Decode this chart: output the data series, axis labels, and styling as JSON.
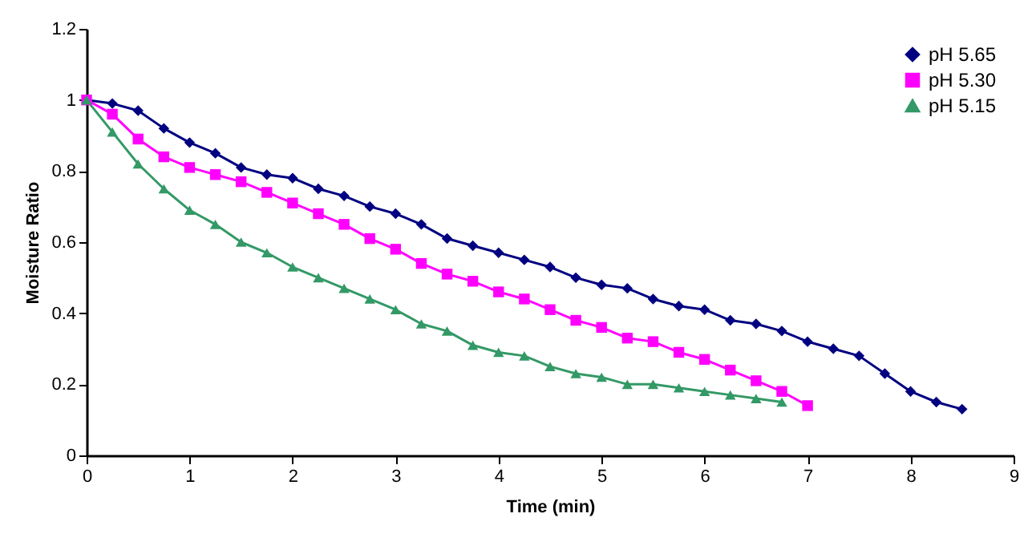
{
  "chart_data": {
    "type": "line",
    "xlabel": "Time (min)",
    "ylabel": "Moisture Ratio",
    "xlim": [
      0,
      9
    ],
    "xticks": [
      0,
      1,
      2,
      3,
      4,
      5,
      6,
      7,
      8,
      9
    ],
    "ylim": [
      0,
      1.2
    ],
    "yticks": [
      0,
      0.2,
      0.4,
      0.6,
      0.8,
      1,
      1.2
    ],
    "grid": false,
    "legend": "top right",
    "line_style": "solid",
    "series": [
      {
        "name": "pH 5.65",
        "color": "#000080",
        "marker": "diamond",
        "x": [
          0,
          0.25,
          0.5,
          0.75,
          1,
          1.25,
          1.5,
          1.75,
          2,
          2.25,
          2.5,
          2.75,
          3,
          3.25,
          3.5,
          3.75,
          4,
          4.25,
          4.5,
          4.75,
          5,
          5.25,
          5.5,
          5.75,
          6,
          6.25,
          6.5,
          6.75,
          7,
          7.25,
          7.5,
          7.75,
          8,
          8.25,
          8.5
        ],
        "values": [
          1,
          0.99,
          0.97,
          0.92,
          0.88,
          0.85,
          0.81,
          0.79,
          0.78,
          0.75,
          0.73,
          0.7,
          0.68,
          0.65,
          0.61,
          0.59,
          0.57,
          0.55,
          0.53,
          0.5,
          0.48,
          0.47,
          0.44,
          0.42,
          0.41,
          0.38,
          0.37,
          0.35,
          0.32,
          0.3,
          0.28,
          0.23,
          0.18,
          0.15,
          0.13
        ]
      },
      {
        "name": "pH 5.30",
        "color": "#ff00ff",
        "marker": "square",
        "x": [
          0,
          0.25,
          0.5,
          0.75,
          1,
          1.25,
          1.5,
          1.75,
          2,
          2.25,
          2.5,
          2.75,
          3,
          3.25,
          3.5,
          3.75,
          4,
          4.25,
          4.5,
          4.75,
          5,
          5.25,
          5.5,
          5.75,
          6,
          6.25,
          6.5,
          6.75,
          7
        ],
        "values": [
          1,
          0.96,
          0.89,
          0.84,
          0.81,
          0.79,
          0.77,
          0.74,
          0.71,
          0.68,
          0.65,
          0.61,
          0.58,
          0.54,
          0.51,
          0.49,
          0.46,
          0.44,
          0.41,
          0.38,
          0.36,
          0.33,
          0.32,
          0.29,
          0.27,
          0.24,
          0.21,
          0.18,
          0.14
        ]
      },
      {
        "name": "pH 5.15",
        "color": "#339966",
        "marker": "triangle",
        "x": [
          0,
          0.25,
          0.5,
          0.75,
          1,
          1.25,
          1.5,
          1.75,
          2,
          2.25,
          2.5,
          2.75,
          3,
          3.25,
          3.5,
          3.75,
          4,
          4.25,
          4.5,
          4.75,
          5,
          5.25,
          5.5,
          5.75,
          6,
          6.25,
          6.5,
          6.75
        ],
        "values": [
          1,
          0.91,
          0.82,
          0.75,
          0.69,
          0.65,
          0.6,
          0.57,
          0.53,
          0.5,
          0.47,
          0.44,
          0.41,
          0.37,
          0.35,
          0.31,
          0.29,
          0.28,
          0.25,
          0.23,
          0.22,
          0.2,
          0.2,
          0.19,
          0.18,
          0.17,
          0.16,
          0.15
        ]
      }
    ]
  }
}
